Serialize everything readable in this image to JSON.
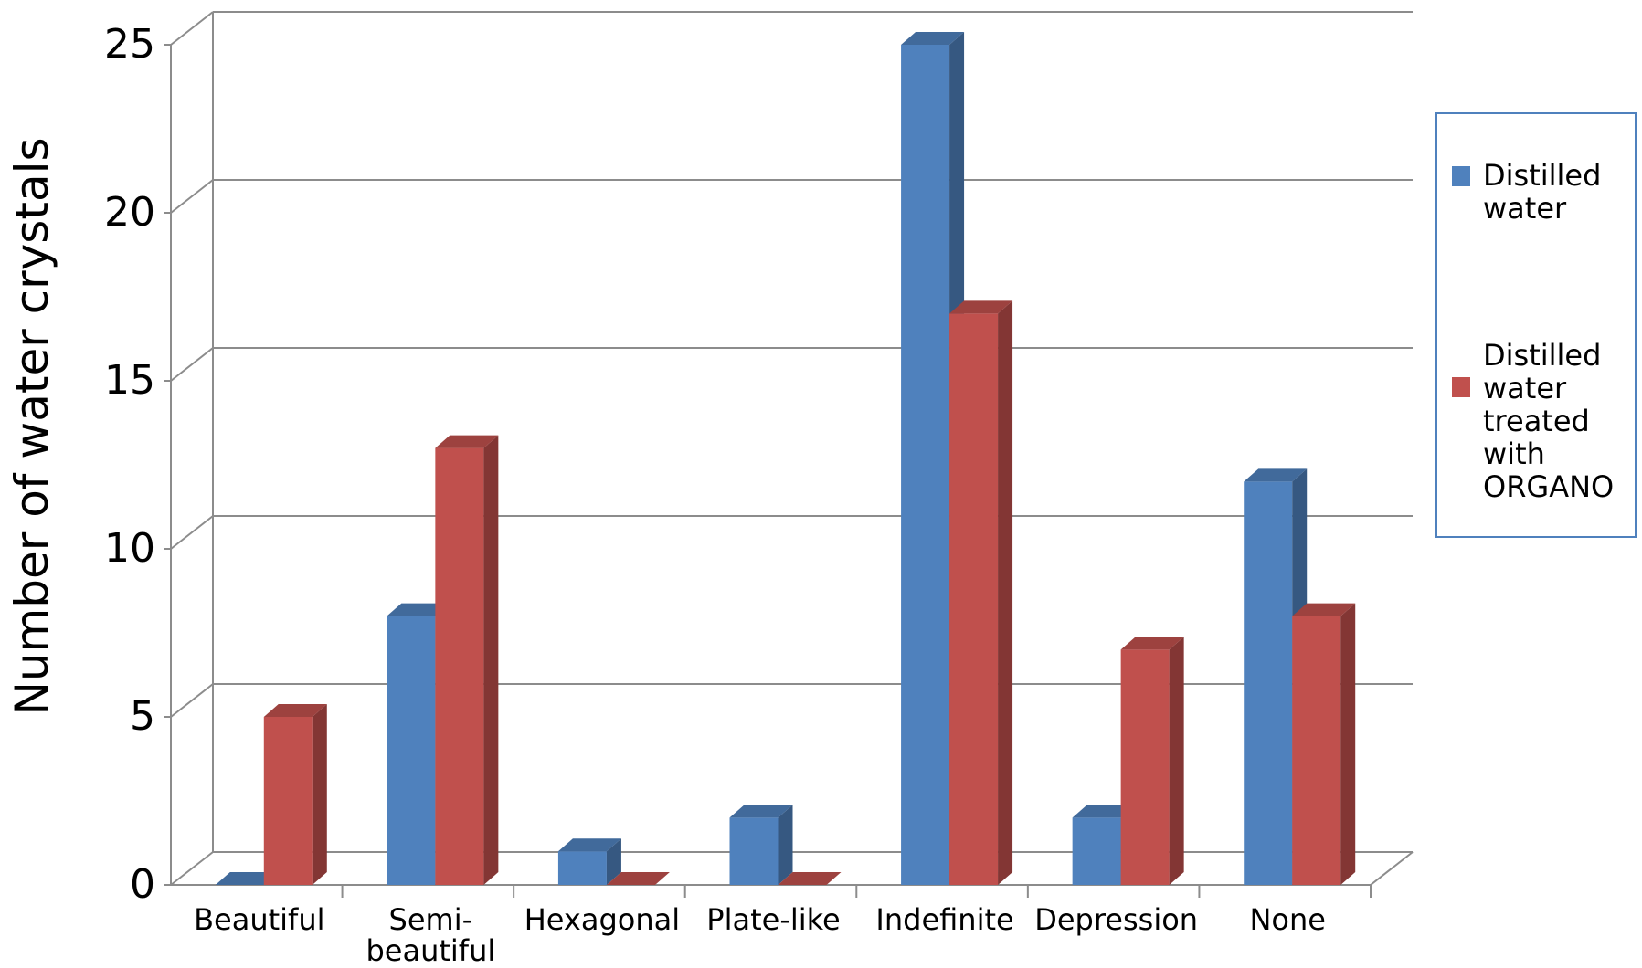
{
  "chart_data": {
    "type": "bar",
    "subtype": "3d-clustered-column",
    "title": "",
    "xlabel": "",
    "ylabel": "Number of water crystals",
    "ylim": [
      0,
      25
    ],
    "yticks": [
      0,
      5,
      10,
      15,
      20,
      25
    ],
    "grid": true,
    "legend_position": "right",
    "categories": [
      [
        "Beautiful"
      ],
      [
        "Semi-",
        "beautiful"
      ],
      [
        "Hexagonal"
      ],
      [
        "Plate-like"
      ],
      [
        "Indefinite"
      ],
      [
        "Depression"
      ],
      [
        "None"
      ]
    ],
    "series": [
      {
        "name_lines": [
          "Distilled",
          "water"
        ],
        "color": "#4F81BD",
        "values": [
          0,
          8,
          1,
          2,
          25,
          2,
          12
        ]
      },
      {
        "name_lines": [
          "Distilled",
          "water",
          "treated",
          "with",
          "ORGANO"
        ],
        "color": "#C0504D",
        "values": [
          5,
          13,
          0,
          0,
          17,
          7,
          8
        ]
      }
    ]
  }
}
